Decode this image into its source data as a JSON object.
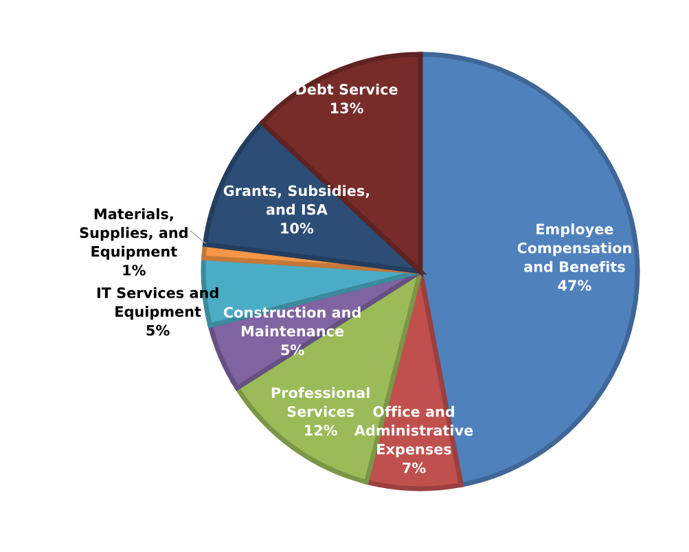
{
  "chart_data": {
    "type": "pie",
    "categories": [
      "Employee\nCompensation\nand Benefits",
      "Office and\nAdministrative\nExpenses",
      "Professional\nServices",
      "Construction and\nMaintenance",
      "IT Services and\nEquipment",
      "Materials,\nSupplies, and\nEquipment",
      "Grants, Subsidies,\nand ISA",
      "Debt Service"
    ],
    "values": [
      47,
      7,
      12,
      5,
      5,
      1,
      10,
      13
    ],
    "value_labels": [
      "47%",
      "7%",
      "12%",
      "5%",
      "5%",
      "1%",
      "10%",
      "13%"
    ],
    "colors": [
      "#4f81bd",
      "#c0504d",
      "#9bbb59",
      "#8064a2",
      "#4bacc6",
      "#f79646",
      "#2c4d75",
      "#772c2a"
    ],
    "legend": false
  }
}
